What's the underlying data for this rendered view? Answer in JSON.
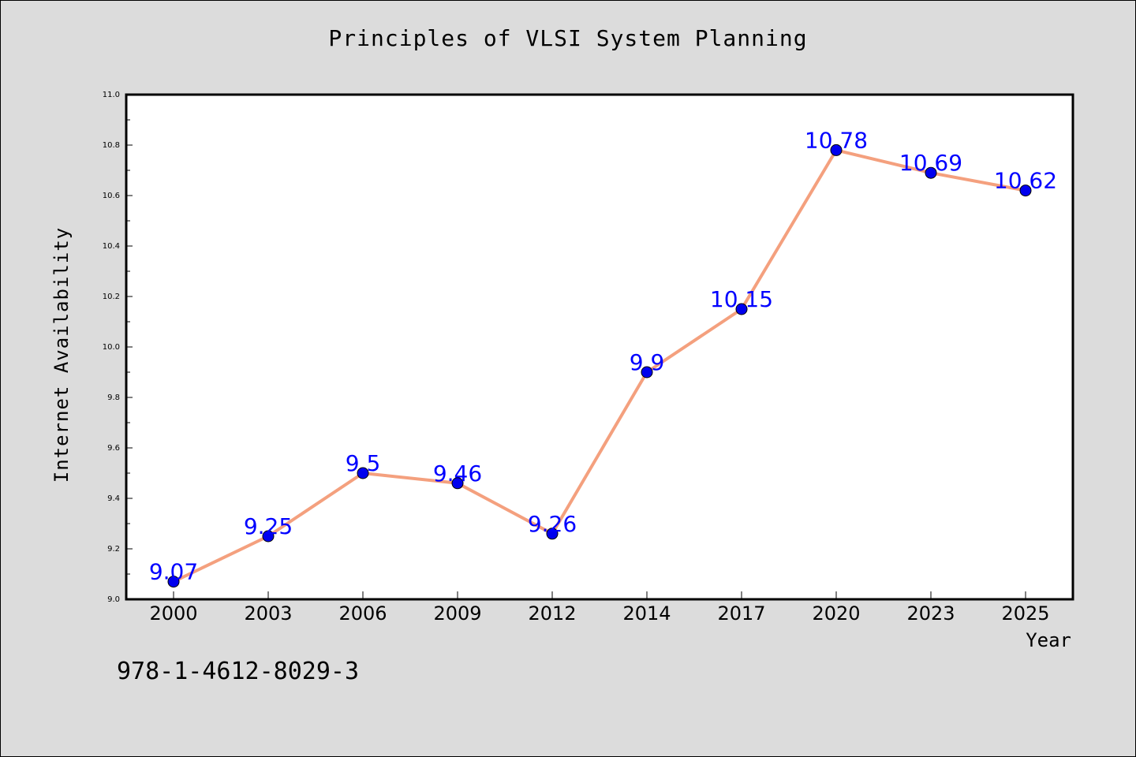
{
  "chart_data": {
    "type": "line",
    "title": "Principles of VLSI System Planning",
    "xlabel": "Year",
    "ylabel": "Internet Availability",
    "categories": [
      "2000",
      "2003",
      "2006",
      "2009",
      "2012",
      "2014",
      "2017",
      "2020",
      "2023",
      "2025"
    ],
    "series": [
      {
        "values": [
          9.07,
          9.25,
          9.5,
          9.46,
          9.26,
          9.9,
          10.15,
          10.78,
          10.69,
          10.62
        ],
        "labels": [
          "9.07",
          "9.25",
          "9.5",
          "9.46",
          "9.26",
          "9.9",
          "10.15",
          "10.78",
          "10.69",
          "10.62"
        ]
      }
    ],
    "ylim": [
      9.0,
      11.0
    ],
    "yticks": [
      "9.0",
      "9.2",
      "9.4",
      "9.6",
      "9.8",
      "10.0",
      "10.2",
      "10.4",
      "10.6",
      "10.8",
      "11.0"
    ],
    "grid": false,
    "line_color": "#f4a07e",
    "marker_color": "#0000ee",
    "label_color": "#0000ff"
  },
  "footer": {
    "isbn": "978-1-4612-8029-3"
  }
}
